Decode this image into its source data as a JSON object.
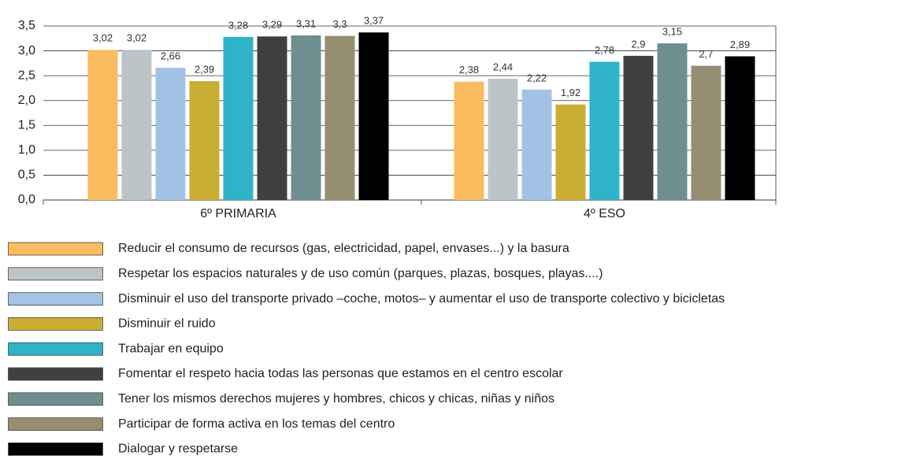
{
  "chart_data": {
    "type": "bar",
    "categories": [
      "6º PRIMARIA",
      "4º ESO"
    ],
    "series": [
      {
        "name": "Reducir el consumo de recursos (gas, electricidad, papel, envases...)  y la basura",
        "color": "#fbbc5f",
        "values": [
          3.02,
          2.38
        ],
        "value_labels": [
          "3,02",
          "2,38"
        ]
      },
      {
        "name": "Respetar los espacios naturales y de uso común (parques, plazas, bosques, playas....)",
        "color": "#bcc4c8",
        "values": [
          3.02,
          2.44
        ],
        "value_labels": [
          "3,02",
          "2,44"
        ]
      },
      {
        "name": "Disminuir el uso del transporte privado –coche, motos–  y aumentar el uso de transporte colectivo y bicicletas",
        "color": "#a3c3e6",
        "values": [
          2.66,
          2.22
        ],
        "value_labels": [
          "2,66",
          "2,22"
        ]
      },
      {
        "name": "Disminuir el ruido",
        "color": "#c9ae33",
        "values": [
          2.39,
          1.92
        ],
        "value_labels": [
          "2,39",
          "1,92"
        ]
      },
      {
        "name": "Trabajar en equipo",
        "color": "#2fb3c8",
        "values": [
          3.28,
          2.78
        ],
        "value_labels": [
          "3,28",
          "2,78"
        ]
      },
      {
        "name": "Fomentar el respeto hacia todas las personas que estamos en el centro escolar",
        "color": "#404042",
        "values": [
          3.29,
          2.9
        ],
        "value_labels": [
          "3,29",
          "2,9"
        ]
      },
      {
        "name": "Tener los mismos derechos mujeres y hombres, chicos y chicas, niñas y niños",
        "color": "#6f8e90",
        "values": [
          3.31,
          3.15
        ],
        "value_labels": [
          "3,31",
          "3,15"
        ]
      },
      {
        "name": "Participar de forma activa en los temas del centro",
        "color": "#958e70",
        "values": [
          3.3,
          2.7
        ],
        "value_labels": [
          "3,3",
          "2,7"
        ]
      },
      {
        "name": "Dialogar y respetarse",
        "color": "#000000",
        "values": [
          3.37,
          2.89
        ],
        "value_labels": [
          "3,37",
          "2,89"
        ]
      }
    ],
    "ylim": [
      0,
      3.5
    ],
    "yticks": [
      {
        "value": 0,
        "label": "0,0"
      },
      {
        "value": 0.5,
        "label": "0,5"
      },
      {
        "value": 1,
        "label": "1,0"
      },
      {
        "value": 1.5,
        "label": "1,5"
      },
      {
        "value": 2,
        "label": "2,0"
      },
      {
        "value": 2.5,
        "label": "2,5"
      },
      {
        "value": 3,
        "label": "3,0"
      },
      {
        "value": 3.5,
        "label": "3,5"
      }
    ],
    "grid": true
  }
}
